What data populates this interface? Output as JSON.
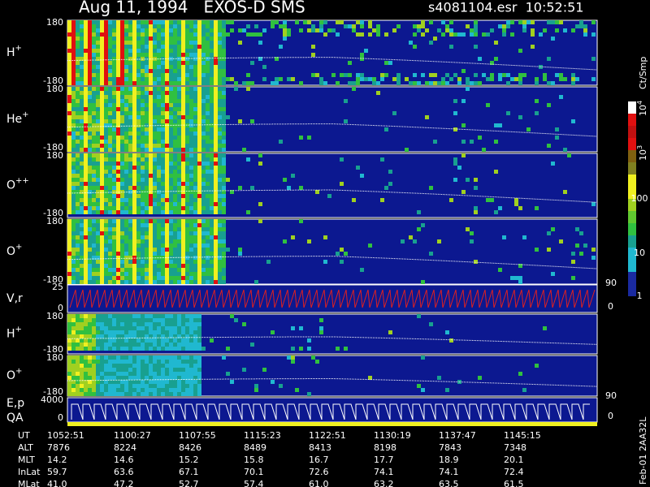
{
  "header": {
    "title": "Aug 11, 1994   EXOS-D SMS",
    "file": "s4081104.esr  10:52:51"
  },
  "panels": [
    {
      "name": "H",
      "sup": "+",
      "top": "180",
      "bottom": "-180"
    },
    {
      "name": "He",
      "sup": "+",
      "top": "180",
      "bottom": "-180"
    },
    {
      "name": "O",
      "sup": "++",
      "top": "180",
      "bottom": "-180"
    },
    {
      "name": "O",
      "sup": "+",
      "top": "180",
      "bottom": "-180"
    },
    {
      "name": "V,r",
      "top": "25",
      "bottom": "0",
      "right_top": "90",
      "right_bottom": "0"
    },
    {
      "name": "H",
      "sup": "+",
      "top": "180",
      "bottom": "-180"
    },
    {
      "name": "O",
      "sup": "+",
      "top": "180",
      "bottom": "-180"
    },
    {
      "name": "E,p",
      "name2": "QA",
      "top": "4000",
      "bottom": "0",
      "right_top": "90",
      "right_bottom": "0"
    }
  ],
  "colorbar": {
    "unit": "Ct/Smp",
    "labels": [
      "1",
      "10",
      "100",
      {
        "base": "10",
        "exp": "3"
      },
      {
        "base": "10",
        "exp": "4"
      }
    ]
  },
  "table": {
    "rows": [
      [
        "UT",
        "1052:51",
        "1100:27",
        "1107:55",
        "1115:23",
        "1122:51",
        "1130:19",
        "1137:47",
        "1145:15"
      ],
      [
        "ALT",
        "7876",
        "8224",
        "8426",
        "8489",
        "8413",
        "8198",
        "7843",
        "7348"
      ],
      [
        "MLT",
        "14.2",
        "14.6",
        "15.2",
        "15.8",
        "16.7",
        "17.7",
        "18.9",
        "20.1"
      ],
      [
        "InLat",
        "59.7",
        "63.6",
        "67.1",
        "70.1",
        "72.6",
        "74.1",
        "74.1",
        "72.4"
      ],
      [
        "MLat",
        "41.0",
        "47.2",
        "52.7",
        "57.4",
        "61.0",
        "63.2",
        "63.5",
        "61.5"
      ]
    ]
  },
  "footer_code": "Feb-01 2AA32L"
}
